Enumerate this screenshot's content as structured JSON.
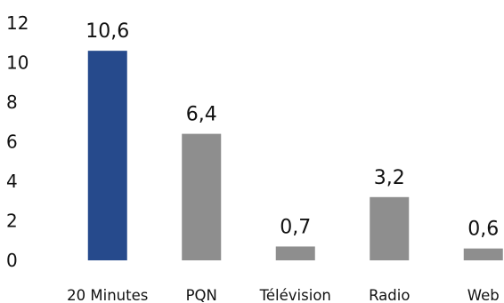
{
  "chart_data": {
    "type": "bar",
    "categories": [
      "20 Minutes",
      "PQN",
      "Télévision",
      "Radio",
      "Web"
    ],
    "values": [
      10.6,
      6.4,
      0.7,
      3.2,
      0.6
    ],
    "value_labels": [
      "10,6",
      "6,4",
      "0,7",
      "3,2",
      "0,6"
    ],
    "title": "",
    "xlabel": "",
    "ylabel": "",
    "ylim": [
      0,
      12
    ],
    "yticks": [
      0,
      2,
      4,
      6,
      8,
      10,
      12
    ],
    "grid": false,
    "colors": {
      "highlight": "#264a8c",
      "default": "#8e8e8e"
    },
    "highlight_index": 0
  }
}
